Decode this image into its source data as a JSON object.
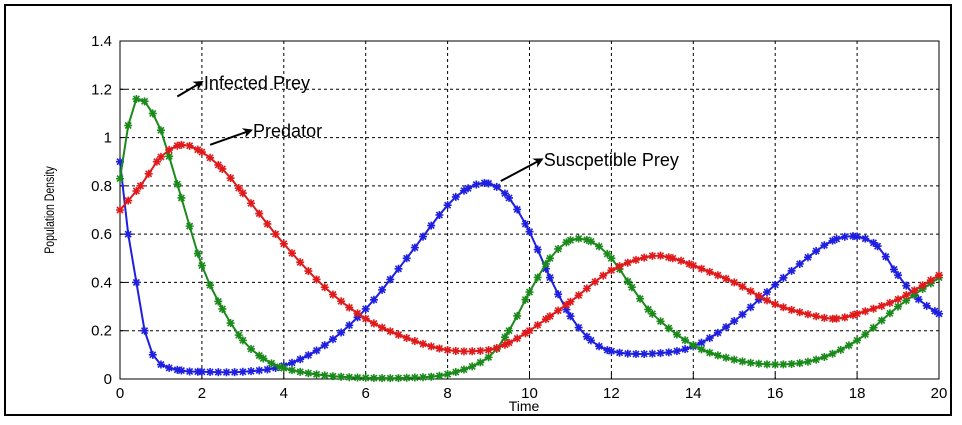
{
  "chart_data": {
    "type": "line",
    "xlabel": "Time",
    "ylabel": "Population Density",
    "xlim": [
      0,
      20
    ],
    "ylim": [
      0,
      1.4
    ],
    "xticks": [
      0,
      2,
      4,
      6,
      8,
      10,
      12,
      14,
      16,
      18,
      20
    ],
    "yticks": [
      0,
      0.2,
      0.4,
      0.6,
      0.8,
      1,
      1.2,
      1.4
    ],
    "xtick_labels": [
      "0",
      "2",
      "4",
      "6",
      "8",
      "10",
      "12",
      "14",
      "16",
      "18",
      "20"
    ],
    "ytick_labels": [
      "0",
      "0.2",
      "0.4",
      "0.6",
      "0.8",
      "1",
      "1.2",
      "1.4"
    ],
    "grid": true,
    "series": [
      {
        "name": "Susceptible Prey",
        "color": "#1f1fe0",
        "x": [
          0,
          0.2,
          0.4,
          0.6,
          0.8,
          1,
          1.5,
          2,
          3,
          4,
          5,
          6,
          7,
          8,
          8.5,
          9,
          9.5,
          10,
          10.5,
          11,
          11.5,
          12,
          13,
          14,
          15,
          16,
          17,
          17.5,
          18,
          18.5,
          19,
          19.5,
          20
        ],
        "y": [
          0.9,
          0.6,
          0.4,
          0.2,
          0.1,
          0.06,
          0.035,
          0.03,
          0.03,
          0.055,
          0.14,
          0.29,
          0.5,
          0.72,
          0.79,
          0.81,
          0.75,
          0.61,
          0.42,
          0.26,
          0.16,
          0.115,
          0.105,
          0.135,
          0.24,
          0.39,
          0.53,
          0.58,
          0.59,
          0.55,
          0.43,
          0.33,
          0.27
        ]
      },
      {
        "name": "Infected Prey",
        "color": "#1a8a1a",
        "x": [
          0,
          0.2,
          0.4,
          0.6,
          0.8,
          1,
          1.5,
          2,
          2.5,
          3,
          3.5,
          4,
          5,
          6,
          7,
          8,
          9,
          9.5,
          10,
          10.5,
          11,
          11.5,
          12,
          12.5,
          13,
          14,
          15,
          16,
          17,
          18,
          19,
          20
        ],
        "y": [
          0.83,
          1.05,
          1.16,
          1.15,
          1.1,
          1.03,
          0.75,
          0.47,
          0.29,
          0.16,
          0.085,
          0.045,
          0.015,
          0.005,
          0.005,
          0.02,
          0.09,
          0.2,
          0.36,
          0.5,
          0.575,
          0.57,
          0.5,
          0.38,
          0.27,
          0.14,
          0.08,
          0.06,
          0.08,
          0.16,
          0.3,
          0.42
        ]
      },
      {
        "name": "Predator",
        "color": "#e01a1a",
        "x": [
          0,
          0.5,
          1,
          1.5,
          2,
          2.5,
          3,
          4,
          5,
          6,
          7,
          8,
          9,
          9.5,
          10,
          10.5,
          11,
          12,
          13,
          13.5,
          14,
          15,
          16,
          17,
          17.5,
          18,
          19,
          20
        ],
        "y": [
          0.7,
          0.8,
          0.92,
          0.97,
          0.94,
          0.87,
          0.77,
          0.56,
          0.38,
          0.25,
          0.17,
          0.12,
          0.12,
          0.15,
          0.2,
          0.26,
          0.32,
          0.45,
          0.51,
          0.5,
          0.47,
          0.4,
          0.31,
          0.26,
          0.25,
          0.27,
          0.33,
          0.43
        ]
      }
    ],
    "annotations": [
      {
        "text": "Infected Prey",
        "x": 2,
        "y": 1.21,
        "arrow_from": [
          1.4,
          1.17
        ],
        "arrow_to": [
          2,
          1.23
        ]
      },
      {
        "text": "Predator",
        "x": 3.2,
        "y": 1.01,
        "arrow_from": [
          2.2,
          0.97
        ],
        "arrow_to": [
          3.2,
          1.03
        ]
      },
      {
        "text": "Suscpetible Prey",
        "x": 10.3,
        "y": 0.89,
        "arrow_from": [
          9.3,
          0.82
        ],
        "arrow_to": [
          10.3,
          0.91
        ]
      }
    ]
  }
}
